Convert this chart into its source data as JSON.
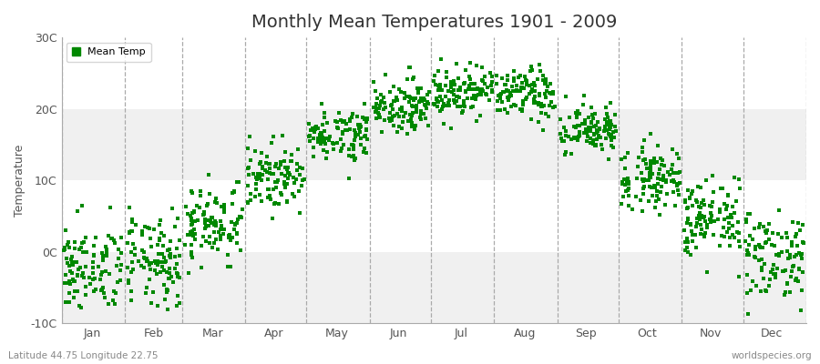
{
  "title": "Monthly Mean Temperatures 1901 - 2009",
  "ylabel": "Temperature",
  "ylim": [
    -10,
    30
  ],
  "yticks": [
    -10,
    0,
    10,
    20,
    30
  ],
  "ytick_labels": [
    "-10C",
    "0C",
    "10C",
    "20C",
    "30C"
  ],
  "month_names": [
    "Jan",
    "Feb",
    "Mar",
    "Apr",
    "May",
    "Jun",
    "Jul",
    "Aug",
    "Sep",
    "Oct",
    "Nov",
    "Dec"
  ],
  "month_day_starts": [
    1,
    32,
    60,
    91,
    121,
    152,
    182,
    213,
    244,
    274,
    305,
    335,
    366
  ],
  "month_day_mids": [
    16,
    46,
    75,
    105,
    136,
    166,
    197,
    228,
    258,
    288,
    319,
    349
  ],
  "xlim": [
    1,
    366
  ],
  "dot_color": "#008800",
  "dot_size": 6,
  "bg_color": "#ffffff",
  "band_color": "#f0f0f0",
  "title_fontsize": 14,
  "axis_label_fontsize": 9,
  "tick_fontsize": 9,
  "legend_label": "Mean Temp",
  "footer_left": "Latitude 44.75 Longitude 22.75",
  "footer_right": "worldspecies.org",
  "monthly_means": [
    -2.5,
    -1.5,
    4.0,
    10.5,
    16.5,
    20.5,
    22.5,
    22.0,
    17.0,
    10.5,
    4.5,
    -0.5
  ],
  "monthly_stds": [
    3.2,
    3.2,
    2.8,
    2.2,
    1.8,
    1.8,
    1.8,
    1.8,
    1.8,
    2.2,
    2.8,
    3.2
  ],
  "n_years": 109,
  "seed": 42
}
